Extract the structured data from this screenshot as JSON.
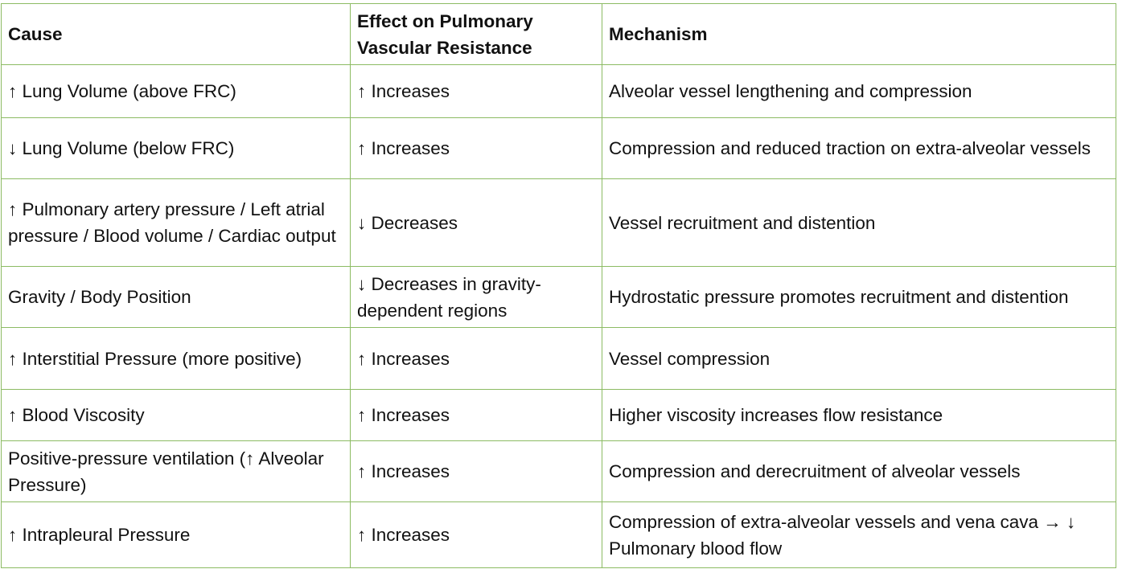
{
  "table": {
    "header": [
      "Cause",
      "Effect on Pulmonary Vascular Resistance",
      "Mechanism"
    ],
    "rows": [
      [
        "↑ Lung Volume (above FRC)",
        "↑ Increases",
        "Alveolar vessel lengthening and compression"
      ],
      [
        "↓ Lung Volume (below FRC)",
        "↑ Increases",
        "Compression and reduced traction on extra-alveolar vessels"
      ],
      [
        "↑ Pulmonary artery pressure / Left atrial pressure / Blood volume / Cardiac output",
        "↓ Decreases",
        "Vessel recruitment and distention"
      ],
      [
        "Gravity / Body Position",
        "↓ Decreases in gravity-dependent regions",
        "Hydrostatic pressure promotes recruitment and distention"
      ],
      [
        "↑ Interstitial Pressure (more positive)",
        "↑ Increases",
        "Vessel compression"
      ],
      [
        "↑ Blood Viscosity",
        "↑ Increases",
        "Higher viscosity increases flow resistance"
      ],
      [
        "Positive-pressure ventilation (↑ Alveolar Pressure)",
        "↑ Increases",
        "Compression and derecruitment of alveolar vessels"
      ],
      [
        "↑ Intrapleural Pressure",
        "↑ Increases",
        "Compression of extra-alveolar vessels and vena cava → ↓ Pulmonary blood flow"
      ]
    ]
  }
}
